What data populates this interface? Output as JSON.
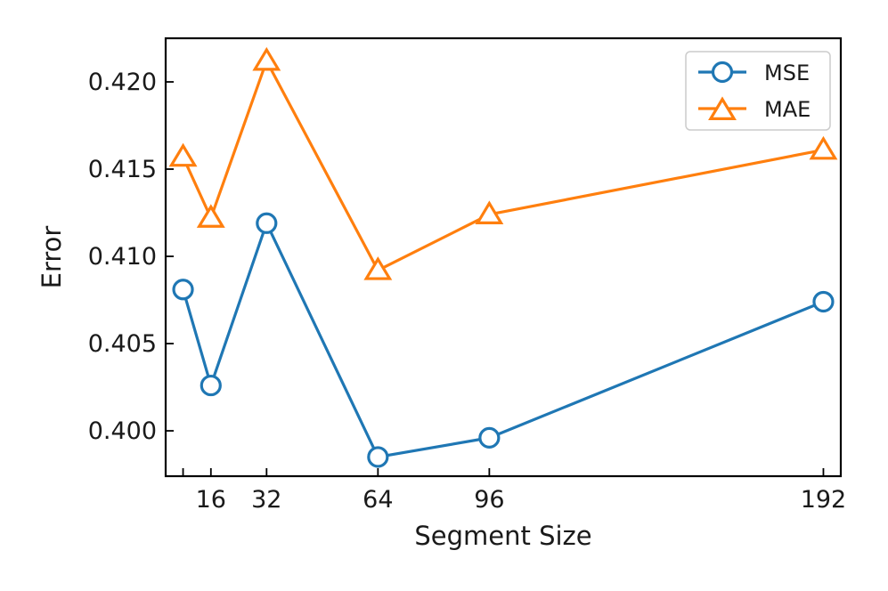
{
  "chart_data": {
    "type": "line",
    "xlabel": "Segment Size",
    "ylabel": "Error",
    "x": [
      8,
      16,
      32,
      64,
      96,
      192
    ],
    "xticks": [
      16,
      32,
      64,
      96,
      192
    ],
    "xtick_labels": [
      "16",
      "32",
      "64",
      "96",
      "192"
    ],
    "xlim": [
      3,
      197
    ],
    "ylim": [
      0.3974,
      0.4225
    ],
    "yticks": [
      0.4,
      0.405,
      0.41,
      0.415,
      0.42
    ],
    "ytick_labels": [
      "0.400",
      "0.405",
      "0.410",
      "0.415",
      "0.420"
    ],
    "grid": false,
    "legend_position": "top-right",
    "series": [
      {
        "name": "MSE",
        "values": [
          0.4081,
          0.4026,
          0.4119,
          0.3985,
          0.3996,
          0.4074
        ],
        "color": "#1f77b4",
        "marker": "circle"
      },
      {
        "name": "MAE",
        "values": [
          0.4157,
          0.4122,
          0.4212,
          0.4092,
          0.4124,
          0.4161
        ],
        "color": "#ff7f0e",
        "marker": "triangle"
      }
    ]
  }
}
